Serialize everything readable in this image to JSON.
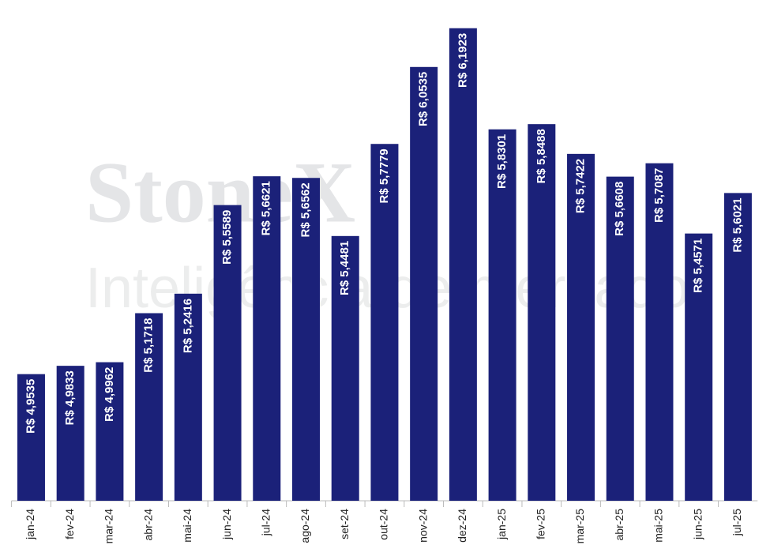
{
  "chart_data": {
    "type": "bar",
    "watermark": [
      "StoneX",
      "Inteligência de mercado"
    ],
    "categories": [
      "jan-24",
      "fev-24",
      "mar-24",
      "abr-24",
      "mai-24",
      "jun-24",
      "jul-24",
      "ago-24",
      "set-24",
      "out-24",
      "nov-24",
      "dez-24",
      "jan-25",
      "fev-25",
      "mar-25",
      "abr-25",
      "mai-25",
      "jun-25",
      "jul-25"
    ],
    "values": [
      4.9535,
      4.9833,
      4.9962,
      5.1718,
      5.2416,
      5.5589,
      5.6621,
      5.6562,
      5.4481,
      5.7779,
      6.0535,
      6.1923,
      5.8301,
      5.8488,
      5.7422,
      5.6608,
      5.7087,
      5.4571,
      5.6021
    ],
    "value_labels": [
      "R$ 4,9535",
      "R$ 4,9833",
      "R$ 4,9962",
      "R$ 5,1718",
      "R$ 5,2416",
      "R$ 5,5589",
      "R$ 5,6621",
      "R$ 5,6562",
      "R$ 5,4481",
      "R$ 5,7779",
      "R$ 6,0535",
      "R$ 6,1923",
      "R$ 5,8301",
      "R$ 5,8488",
      "R$ 5,7422",
      "R$ 5,6608",
      "R$ 5,7087",
      "R$ 5,4571",
      "R$ 5,6021"
    ],
    "color": "#1b2179",
    "ylim": [
      4.5,
      6.2
    ]
  }
}
